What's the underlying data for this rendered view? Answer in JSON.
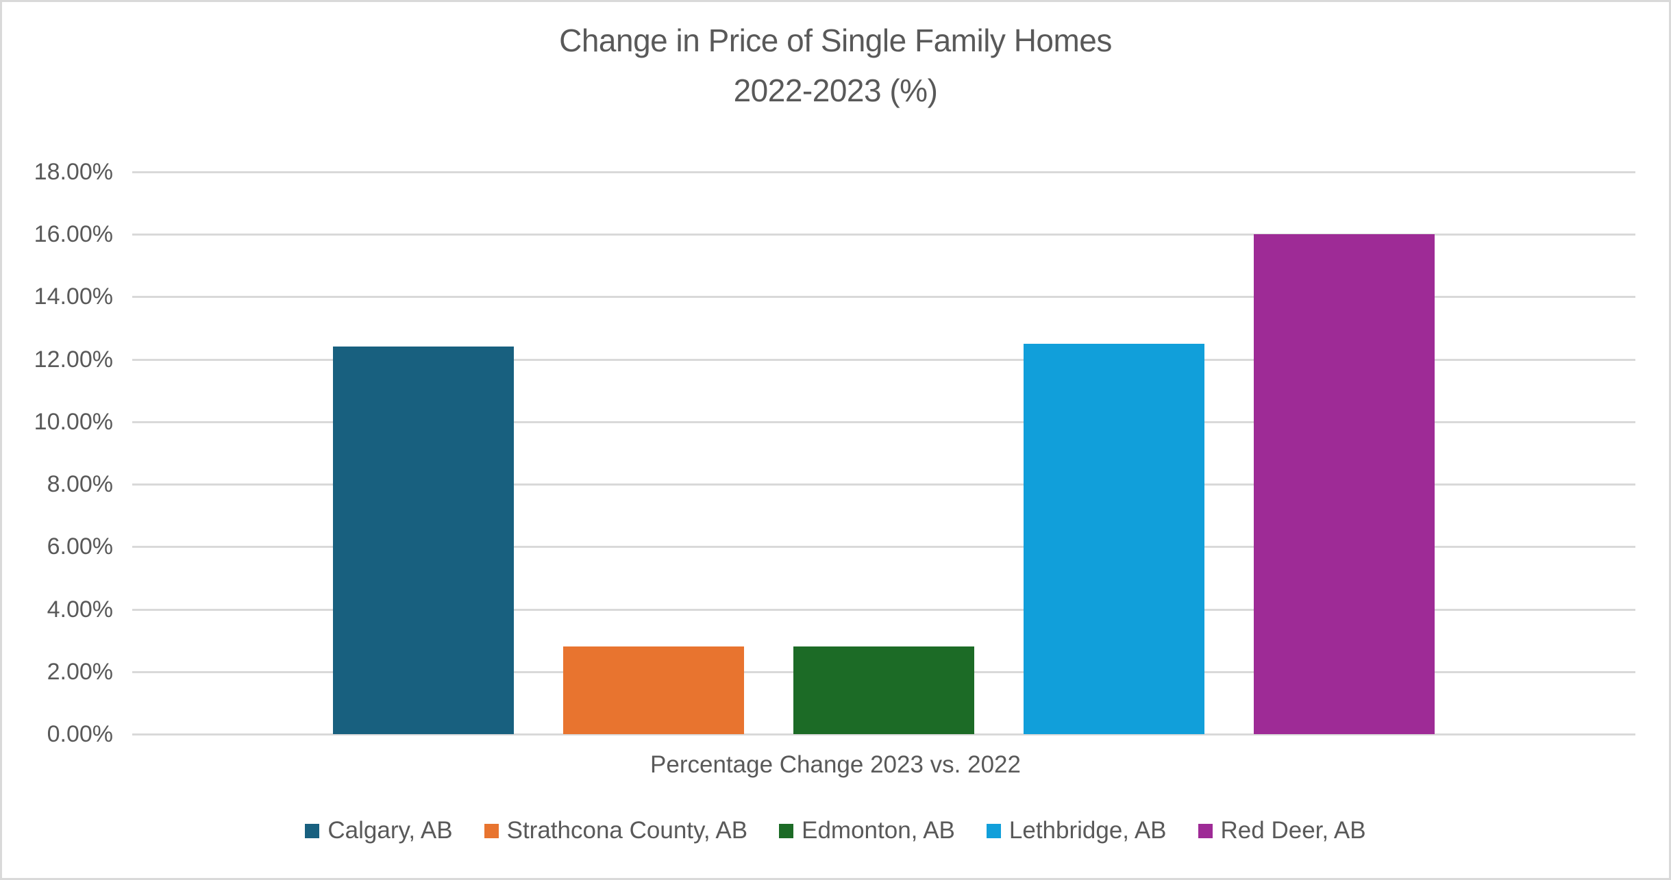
{
  "chart_data": {
    "type": "bar",
    "title": "Change in Price of Single Family Homes",
    "subtitle": "2022-2023 (%)",
    "xlabel": "Percentage Change 2023 vs. 2022",
    "ylabel": "",
    "ylim": [
      0,
      18
    ],
    "ytick_step": 2,
    "ytick_labels": [
      "0.00%",
      "2.00%",
      "4.00%",
      "6.00%",
      "8.00%",
      "10.00%",
      "12.00%",
      "14.00%",
      "16.00%",
      "18.00%"
    ],
    "grid": true,
    "legend_position": "bottom",
    "categories": [
      "Percentage Change 2023 vs. 2022"
    ],
    "series": [
      {
        "name": "Calgary, AB",
        "values": [
          12.4
        ],
        "color": "#18607F"
      },
      {
        "name": "Strathcona County, AB",
        "values": [
          2.8
        ],
        "color": "#E8742F"
      },
      {
        "name": "Edmonton, AB",
        "values": [
          2.8
        ],
        "color": "#1C6B26"
      },
      {
        "name": "Lethbridge, AB",
        "values": [
          12.5
        ],
        "color": "#119FDA"
      },
      {
        "name": "Red Deer, AB",
        "values": [
          16.0
        ],
        "color": "#9E2B96"
      }
    ]
  },
  "colors": {
    "text": "#595959",
    "gridline": "#D9D9D9",
    "frame_border": "#D9D9D9",
    "background": "#FFFFFF"
  }
}
